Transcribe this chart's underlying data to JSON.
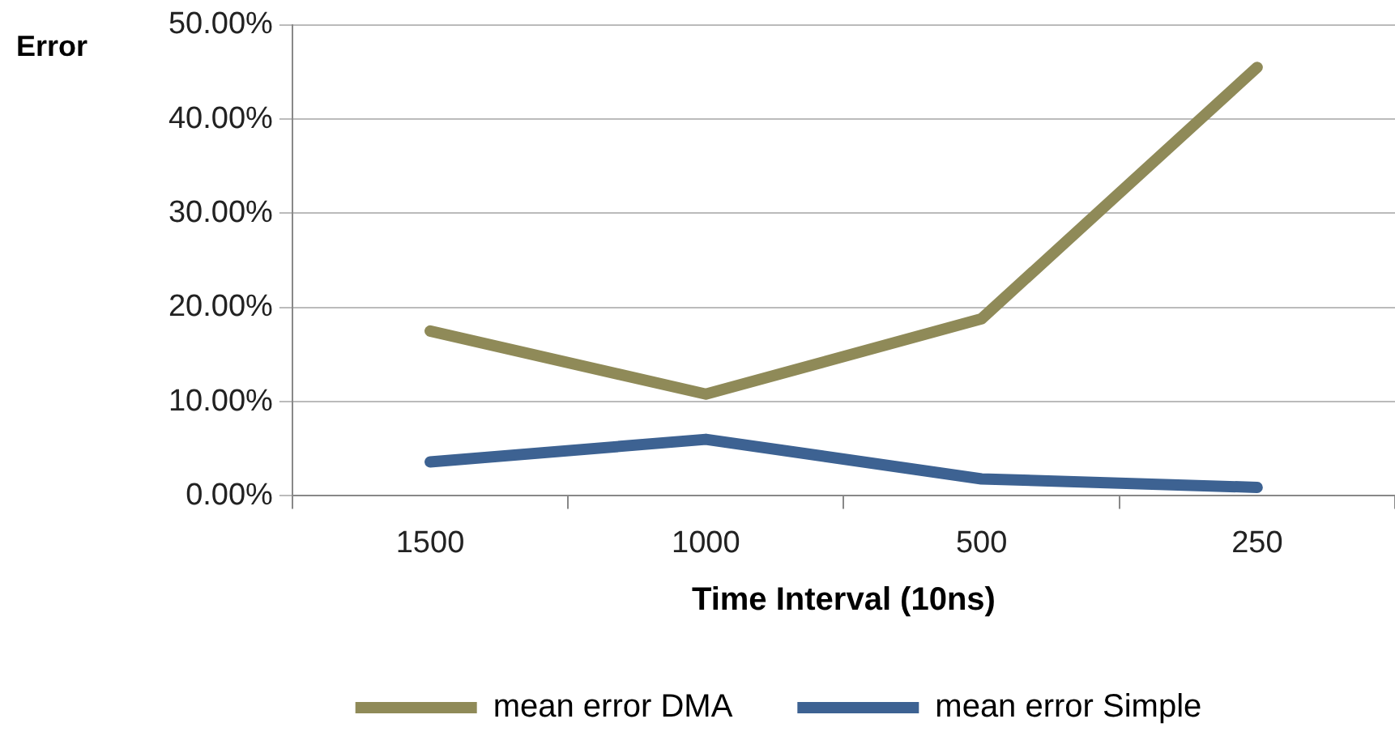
{
  "chart_data": {
    "type": "line",
    "xlabel": "Time Interval (10ns)",
    "ylabel": "Error",
    "categories": [
      "1500",
      "1000",
      "500",
      "250"
    ],
    "series": [
      {
        "name": "mean error DMA",
        "color": "#8f8a58",
        "values": [
          17.5,
          10.8,
          18.8,
          45.5
        ]
      },
      {
        "name": "mean error Simple",
        "color": "#3d6292",
        "values": [
          3.6,
          6.0,
          1.8,
          0.9
        ]
      }
    ],
    "ylim": [
      0,
      50
    ],
    "yticks": [
      {
        "value": 0,
        "label": "0.00%"
      },
      {
        "value": 10,
        "label": "10.00%"
      },
      {
        "value": 20,
        "label": "20.00%"
      },
      {
        "value": 30,
        "label": "30.00%"
      },
      {
        "value": 40,
        "label": "40.00%"
      },
      {
        "value": 50,
        "label": "50.00%"
      }
    ],
    "grid": "y",
    "legend": "bottom",
    "marker": "none",
    "line_style": "solid"
  }
}
